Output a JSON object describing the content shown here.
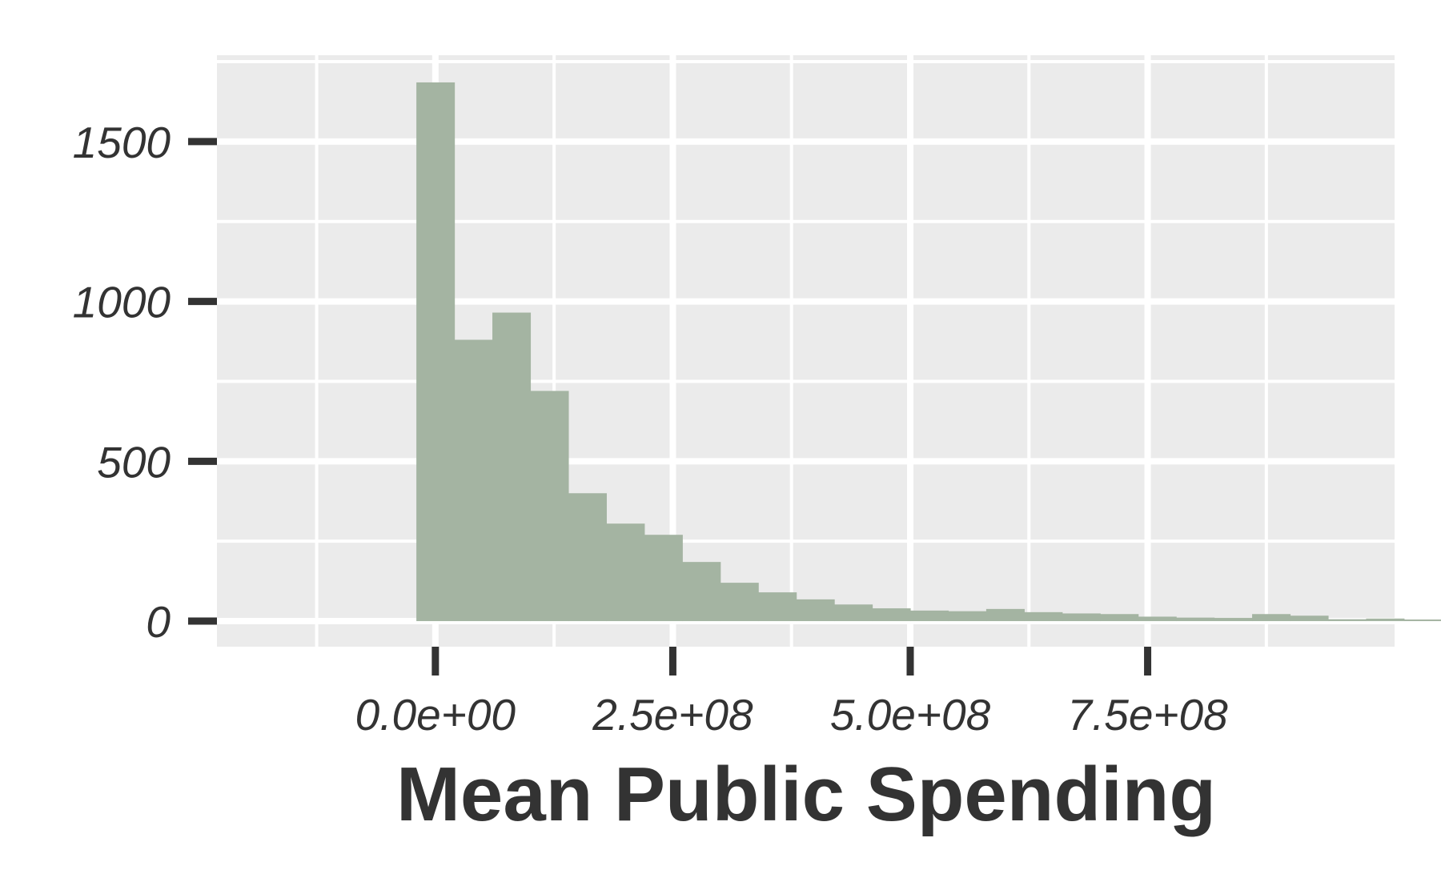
{
  "chart_data": {
    "type": "bar",
    "title": "",
    "xlabel": "Mean Public Spending",
    "ylabel": "",
    "bin_width": 40000000,
    "bin_start": -20000000,
    "values": [
      1685,
      880,
      965,
      720,
      400,
      305,
      270,
      185,
      120,
      90,
      68,
      52,
      40,
      33,
      31,
      38,
      28,
      24,
      22,
      14,
      11,
      10,
      22,
      17,
      6,
      8,
      5,
      3,
      5,
      2
    ],
    "xlim": [
      -230000000,
      1010000000
    ],
    "ylim": [
      -80,
      1770
    ],
    "x_ticks": [
      {
        "value": 0,
        "label": "0.0e+00"
      },
      {
        "value": 250000000,
        "label": "2.5e+08"
      },
      {
        "value": 500000000,
        "label": "5.0e+08"
      },
      {
        "value": 750000000,
        "label": "7.5e+08"
      }
    ],
    "y_ticks": [
      {
        "value": 0,
        "label": "0"
      },
      {
        "value": 500,
        "label": "500"
      },
      {
        "value": 1000,
        "label": "1000"
      },
      {
        "value": 1500,
        "label": "1500"
      }
    ],
    "grid": true,
    "colors": {
      "bar": "#a4b4a2",
      "panel": "#ebebeb",
      "grid": "#ffffff",
      "text": "#333333"
    }
  }
}
